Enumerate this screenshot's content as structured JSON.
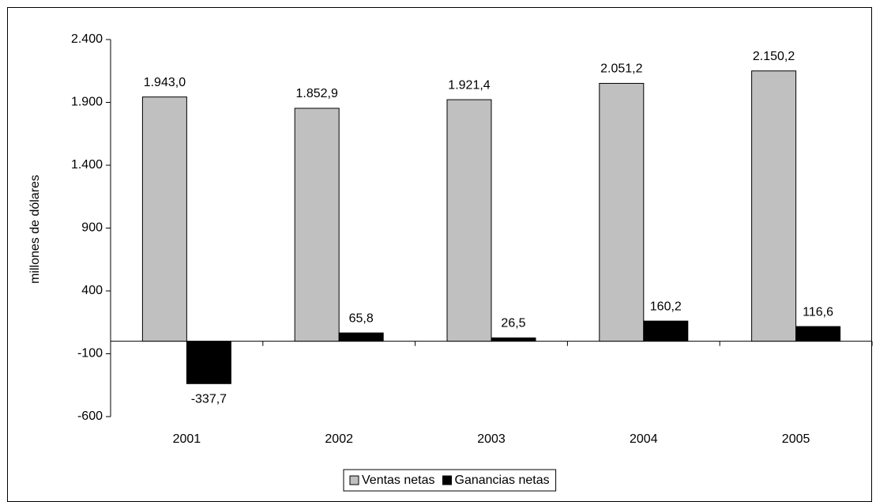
{
  "chart_data": {
    "type": "bar",
    "y_label": "millones de dólares",
    "categories": [
      "2001",
      "2002",
      "2003",
      "2004",
      "2005"
    ],
    "series": [
      {
        "name": "Ventas netas",
        "color": "#c0c0c0",
        "values": [
          1943.0,
          1852.9,
          1921.4,
          2051.2,
          2150.2
        ],
        "value_labels": [
          "1.943,0",
          "1.852,9",
          "1.921,4",
          "2.051,2",
          "2.150,2"
        ]
      },
      {
        "name": "Ganancias netas",
        "color": "#000000",
        "values": [
          -337.7,
          65.8,
          26.5,
          160.2,
          116.6
        ],
        "value_labels": [
          "-337,7",
          "65,8",
          "26,5",
          "160,2",
          "116,6"
        ]
      }
    ],
    "ylim": [
      -600,
      2400
    ],
    "yticks": [
      -600,
      -100,
      400,
      900,
      {
        "value": 1400,
        "label": "1.400"
      },
      {
        "value": 1900,
        "label": "1.900"
      },
      {
        "value": 2400,
        "label": "2.400"
      }
    ],
    "legend": "bottom"
  }
}
